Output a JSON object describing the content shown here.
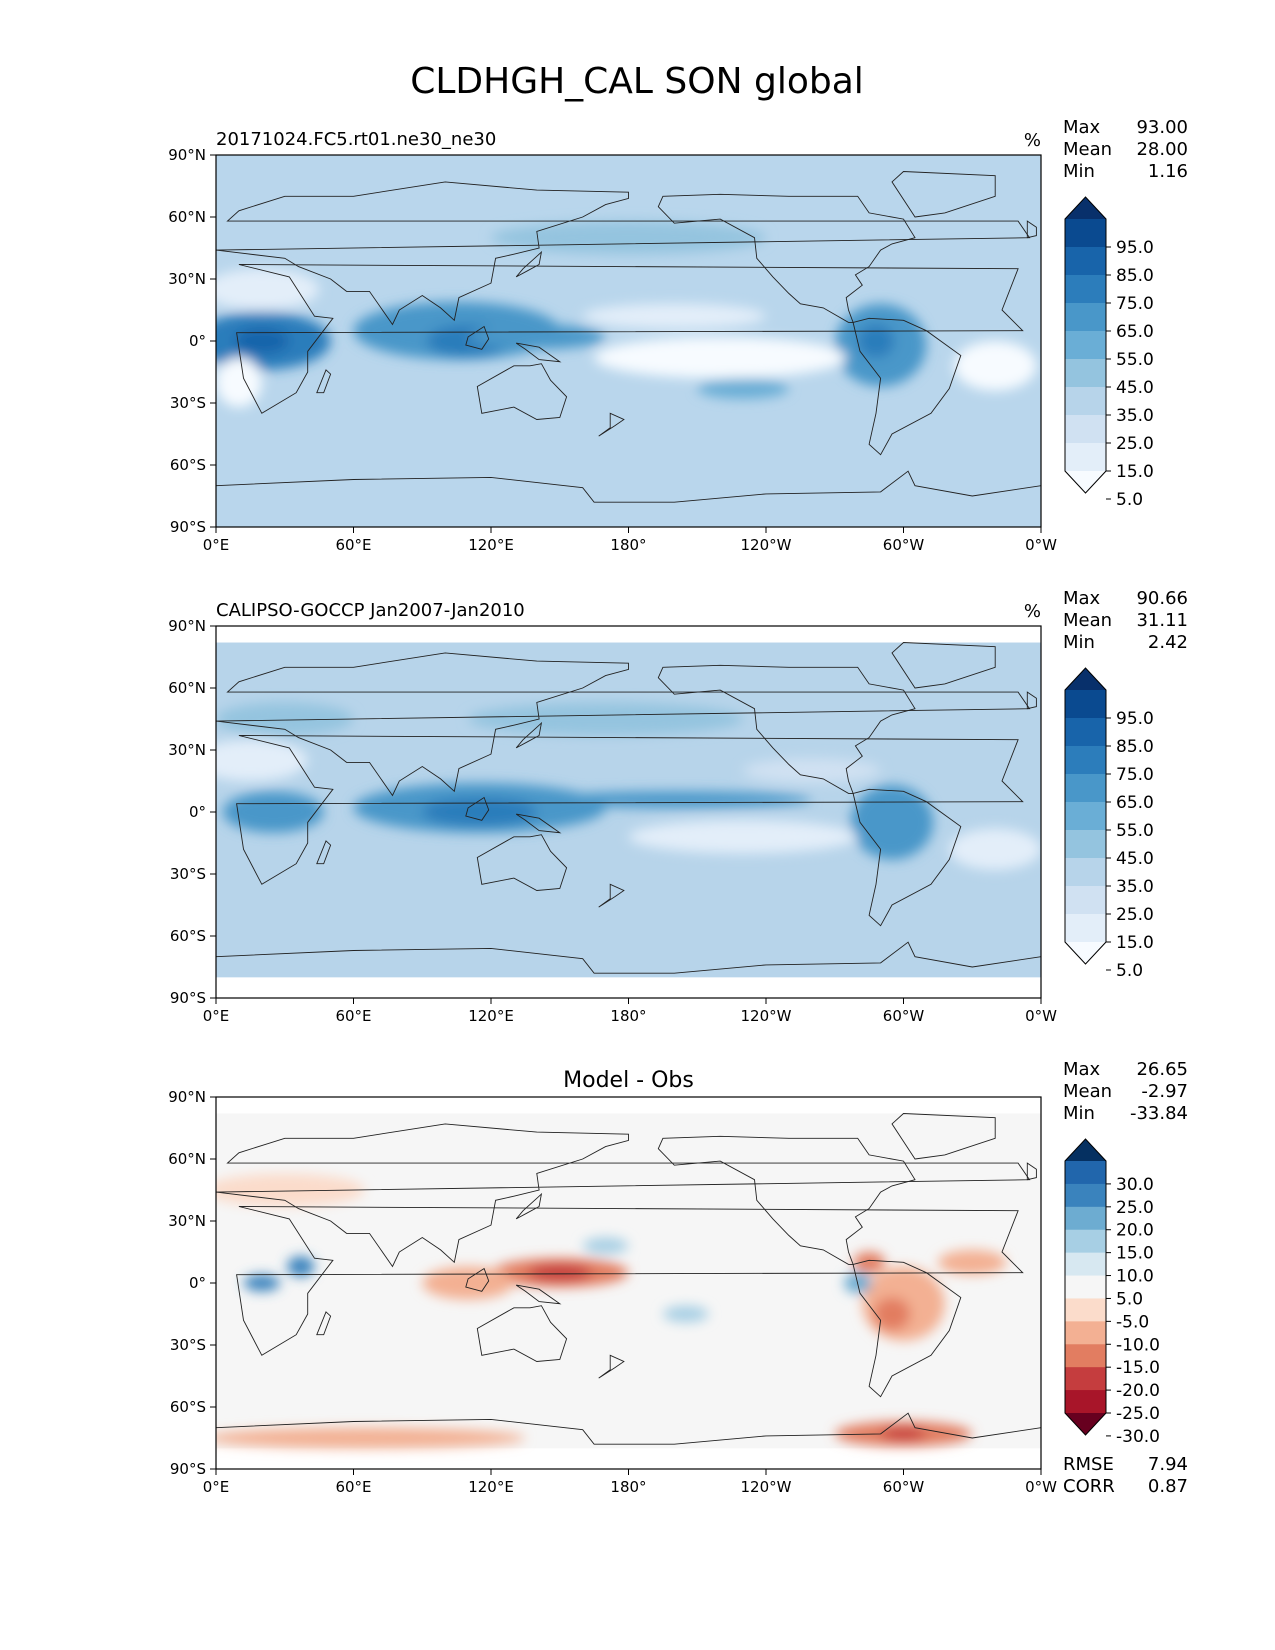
{
  "figure": {
    "title": "CLDHGH_CAL SON global"
  },
  "chart_data": [
    {
      "type": "heatmap",
      "panel": "test",
      "title_left": "20171024.FC5.rt01.ne30_ne30",
      "title_center": "",
      "units": "%",
      "stats": [
        {
          "label": "Max",
          "value": "93.00"
        },
        {
          "label": "Mean",
          "value": "28.00"
        },
        {
          "label": "Min",
          "value": "1.16"
        }
      ],
      "extra_stats": [],
      "x_ticks": [
        "0°E",
        "60°E",
        "120°E",
        "180°",
        "120°W",
        "60°W",
        "0°W"
      ],
      "y_ticks": [
        "90°N",
        "60°N",
        "30°N",
        "0°",
        "30°S",
        "60°S",
        "90°S"
      ],
      "xlim": [
        0,
        360
      ],
      "ylim": [
        -90,
        90
      ],
      "colorbar": {
        "labels": [
          "95.0",
          "85.0",
          "75.0",
          "65.0",
          "55.0",
          "45.0",
          "35.0",
          "25.0",
          "15.0",
          "5.0"
        ],
        "colors": [
          "#08306b",
          "#0a4a90",
          "#1864aa",
          "#2c7dbb",
          "#4997c9",
          "#6aaed6",
          "#94c4df",
          "#b7d4ea",
          "#d0e1f2",
          "#e3eef9",
          "#f7fbff"
        ],
        "extend": "both"
      },
      "background": "#b9d6ec",
      "features": [
        {
          "lon": 20,
          "lat": 0,
          "rx": 30,
          "ry": 14,
          "color": "#2c7dbb"
        },
        {
          "lon": 20,
          "lat": 0,
          "rx": 12,
          "ry": 6,
          "color": "#1864aa"
        },
        {
          "lon": 105,
          "lat": 5,
          "rx": 45,
          "ry": 14,
          "color": "#4997c9"
        },
        {
          "lon": 110,
          "lat": 0,
          "rx": 18,
          "ry": 8,
          "color": "#2c7dbb"
        },
        {
          "lon": 140,
          "lat": 2,
          "rx": 30,
          "ry": 6,
          "color": "#4997c9"
        },
        {
          "lon": 290,
          "lat": -2,
          "rx": 20,
          "ry": 20,
          "color": "#4997c9"
        },
        {
          "lon": 288,
          "lat": 0,
          "rx": 8,
          "ry": 8,
          "color": "#2c7dbb"
        },
        {
          "lon": 220,
          "lat": -8,
          "rx": 55,
          "ry": 10,
          "color": "#f7fbff"
        },
        {
          "lon": 200,
          "lat": 12,
          "rx": 40,
          "ry": 6,
          "color": "#e3eef9"
        },
        {
          "lon": 230,
          "lat": -23,
          "rx": 20,
          "ry": 5,
          "color": "#6aaed6"
        },
        {
          "lon": 10,
          "lat": -20,
          "rx": 10,
          "ry": 12,
          "color": "#f7fbff"
        },
        {
          "lon": 340,
          "lat": -12,
          "rx": 18,
          "ry": 12,
          "color": "#f7fbff"
        },
        {
          "lon": 20,
          "lat": 25,
          "rx": 25,
          "ry": 10,
          "color": "#e3eef9"
        },
        {
          "lon": 180,
          "lat": 50,
          "rx": 60,
          "ry": 8,
          "color": "#94c4df"
        }
      ]
    },
    {
      "type": "heatmap",
      "panel": "reference",
      "title_left": "CALIPSO-GOCCP Jan2007-Jan2010",
      "title_center": "",
      "units": "%",
      "stats": [
        {
          "label": "Max",
          "value": "90.66"
        },
        {
          "label": "Mean",
          "value": "31.11"
        },
        {
          "label": "Min",
          "value": "2.42"
        }
      ],
      "extra_stats": [],
      "x_ticks": [
        "0°E",
        "60°E",
        "120°E",
        "180°",
        "120°W",
        "60°W",
        "0°W"
      ],
      "y_ticks": [
        "90°N",
        "60°N",
        "30°N",
        "0°",
        "30°S",
        "60°S",
        "90°S"
      ],
      "xlim": [
        0,
        360
      ],
      "ylim": [
        -90,
        90
      ],
      "colorbar": {
        "labels": [
          "95.0",
          "85.0",
          "75.0",
          "65.0",
          "55.0",
          "45.0",
          "35.0",
          "25.0",
          "15.0",
          "5.0"
        ],
        "colors": [
          "#08306b",
          "#0a4a90",
          "#1864aa",
          "#2c7dbb",
          "#4997c9",
          "#6aaed6",
          "#94c4df",
          "#b7d4ea",
          "#d0e1f2",
          "#e3eef9",
          "#f7fbff"
        ],
        "extend": "both"
      },
      "background": "#b7d4ea",
      "features": [
        {
          "lon": 25,
          "lat": 0,
          "rx": 22,
          "ry": 10,
          "color": "#4997c9"
        },
        {
          "lon": 115,
          "lat": 2,
          "rx": 55,
          "ry": 12,
          "color": "#4997c9"
        },
        {
          "lon": 115,
          "lat": 0,
          "rx": 25,
          "ry": 7,
          "color": "#2c7dbb"
        },
        {
          "lon": 200,
          "lat": 6,
          "rx": 60,
          "ry": 4,
          "color": "#4997c9"
        },
        {
          "lon": 295,
          "lat": -5,
          "rx": 18,
          "ry": 18,
          "color": "#4997c9"
        },
        {
          "lon": 230,
          "lat": -12,
          "rx": 50,
          "ry": 8,
          "color": "#e3eef9"
        },
        {
          "lon": 260,
          "lat": 20,
          "rx": 30,
          "ry": 6,
          "color": "#d0e1f2"
        },
        {
          "lon": 340,
          "lat": -18,
          "rx": 20,
          "ry": 10,
          "color": "#e3eef9"
        },
        {
          "lon": 15,
          "lat": 25,
          "rx": 25,
          "ry": 10,
          "color": "#e3eef9"
        },
        {
          "lon": 170,
          "lat": 45,
          "rx": 60,
          "ry": 8,
          "color": "#94c4df"
        },
        {
          "lon": 30,
          "lat": 45,
          "rx": 30,
          "ry": 8,
          "color": "#94c4df"
        }
      ],
      "data_band": [
        -80,
        82
      ]
    },
    {
      "type": "heatmap",
      "panel": "difference",
      "title_left": "",
      "title_center": "Model - Obs",
      "units": "",
      "stats": [
        {
          "label": "Max",
          "value": "26.65"
        },
        {
          "label": "Mean",
          "value": "-2.97"
        },
        {
          "label": "Min",
          "value": "-33.84"
        }
      ],
      "extra_stats": [
        {
          "label": "RMSE",
          "value": "7.94"
        },
        {
          "label": "CORR",
          "value": "0.87"
        }
      ],
      "x_ticks": [
        "0°E",
        "60°E",
        "120°E",
        "180°",
        "120°W",
        "60°W",
        "0°W"
      ],
      "y_ticks": [
        "90°N",
        "60°N",
        "30°N",
        "0°",
        "30°S",
        "60°S",
        "90°S"
      ],
      "xlim": [
        0,
        360
      ],
      "ylim": [
        -90,
        90
      ],
      "colorbar": {
        "labels": [
          "30.0",
          "25.0",
          "20.0",
          "15.0",
          "10.0",
          "5.0",
          "-5.0",
          "-10.0",
          "-15.0",
          "-20.0",
          "-25.0",
          "-30.0"
        ],
        "colors": [
          "#053061",
          "#2166ac",
          "#3a83bd",
          "#6dacd1",
          "#a7cfe4",
          "#d7e8f1",
          "#f6f6f6",
          "#fbdccb",
          "#f3b093",
          "#e27d61",
          "#c53d3e",
          "#a81529",
          "#67001f"
        ],
        "extend": "both"
      },
      "background": "#f6f6f6",
      "features": [
        {
          "lon": 20,
          "lat": 0,
          "rx": 8,
          "ry": 4,
          "color": "#3a83bd"
        },
        {
          "lon": 37,
          "lat": 8,
          "rx": 6,
          "ry": 5,
          "color": "#3a83bd"
        },
        {
          "lon": 150,
          "lat": 5,
          "rx": 30,
          "ry": 7,
          "color": "#e27d61"
        },
        {
          "lon": 150,
          "lat": 5,
          "rx": 14,
          "ry": 4,
          "color": "#c53d3e"
        },
        {
          "lon": 110,
          "lat": 0,
          "rx": 20,
          "ry": 8,
          "color": "#f3b093"
        },
        {
          "lon": 300,
          "lat": -10,
          "rx": 18,
          "ry": 18,
          "color": "#f3b093"
        },
        {
          "lon": 295,
          "lat": -15,
          "rx": 8,
          "ry": 8,
          "color": "#e27d61"
        },
        {
          "lon": 285,
          "lat": 10,
          "rx": 7,
          "ry": 5,
          "color": "#e27d61"
        },
        {
          "lon": 280,
          "lat": 0,
          "rx": 6,
          "ry": 5,
          "color": "#6dacd1"
        },
        {
          "lon": 205,
          "lat": -15,
          "rx": 10,
          "ry": 4,
          "color": "#a7cfe4"
        },
        {
          "lon": 170,
          "lat": 18,
          "rx": 10,
          "ry": 4,
          "color": "#a7cfe4"
        },
        {
          "lon": 65,
          "lat": -75,
          "rx": 70,
          "ry": 5,
          "color": "#f3b093"
        },
        {
          "lon": 300,
          "lat": -73,
          "rx": 30,
          "ry": 6,
          "color": "#e27d61"
        },
        {
          "lon": 300,
          "lat": -73,
          "rx": 10,
          "ry": 3,
          "color": "#c53d3e"
        },
        {
          "lon": 30,
          "lat": 45,
          "rx": 35,
          "ry": 8,
          "color": "#fbdccb"
        },
        {
          "lon": 330,
          "lat": 10,
          "rx": 15,
          "ry": 6,
          "color": "#f3b093"
        }
      ],
      "data_band": [
        -80,
        82
      ]
    }
  ]
}
